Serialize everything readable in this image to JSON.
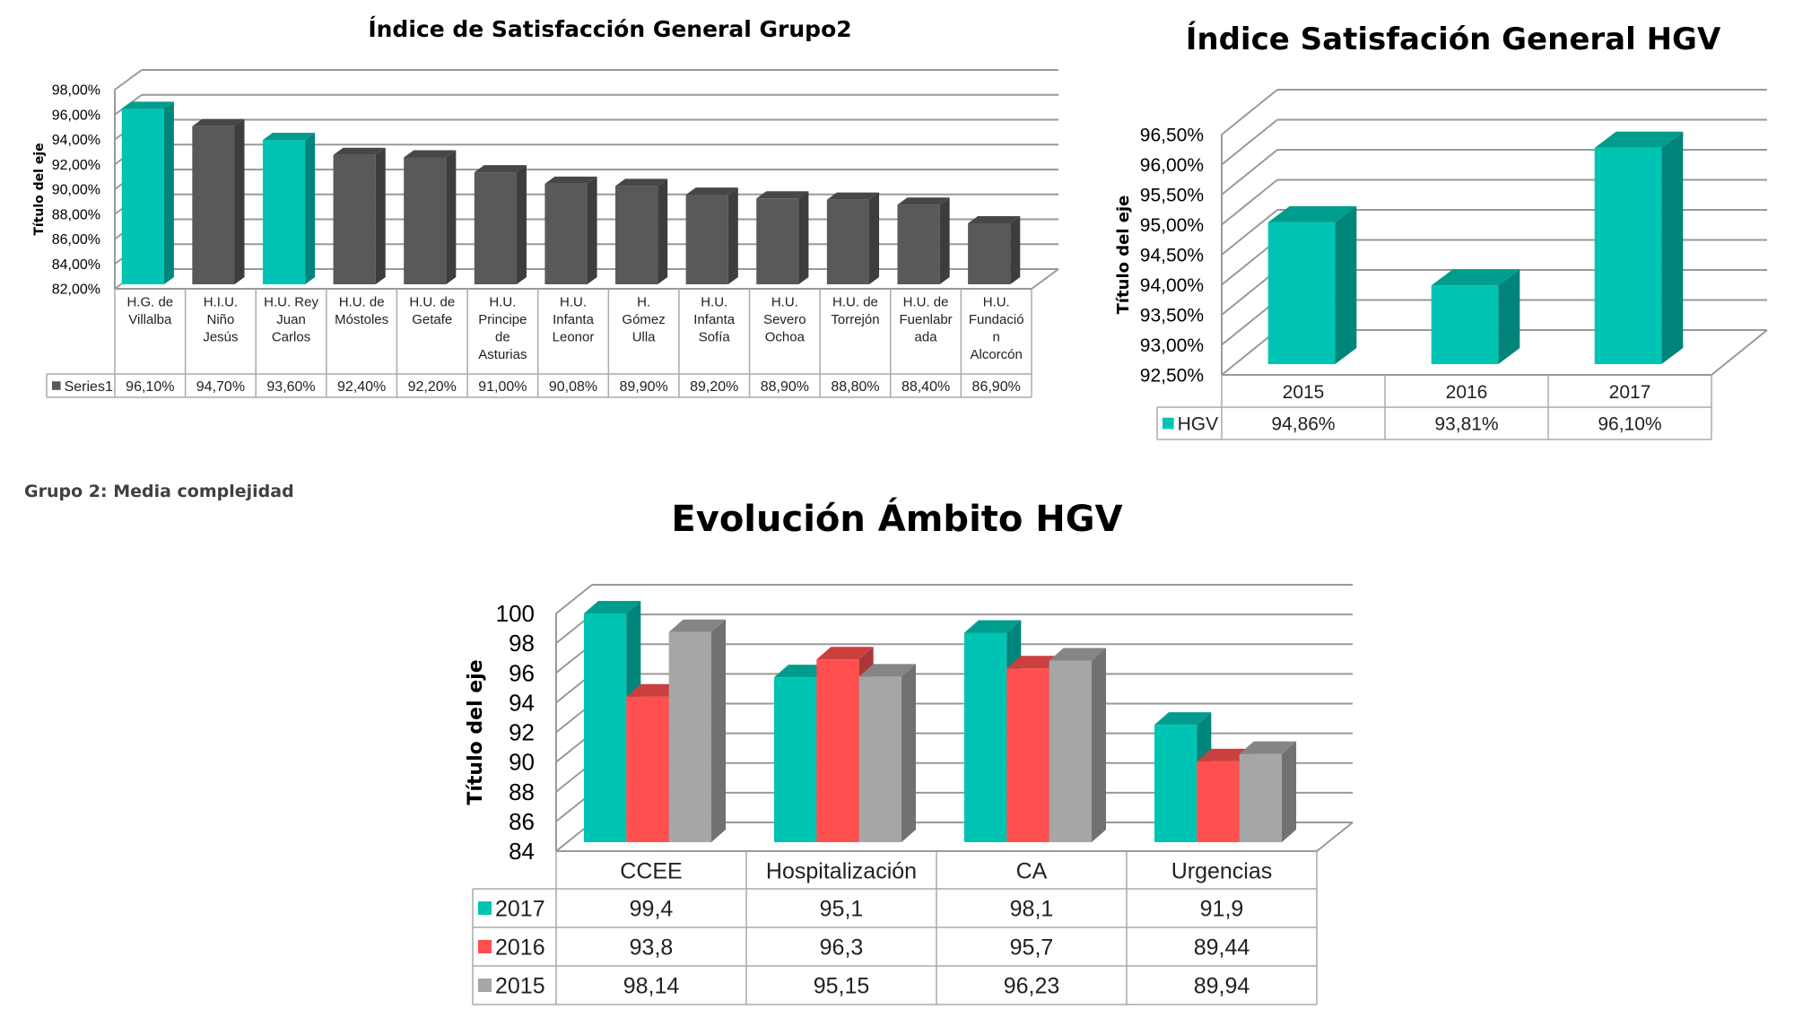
{
  "note": "Grupo 2: Media complejidad",
  "chart_data": [
    {
      "type": "bar",
      "title": "Índice de Satisfacción General Grupo2",
      "xlabel": "",
      "ylabel": "Título del eje",
      "ylim": [
        82,
        98
      ],
      "yticks": [
        "82,00%",
        "84,00%",
        "86,00%",
        "88,00%",
        "90,00%",
        "92,00%",
        "94,00%",
        "96,00%",
        "98,00%"
      ],
      "ytick_values": [
        82,
        84,
        86,
        88,
        90,
        92,
        94,
        96,
        98
      ],
      "grid": true,
      "legend": "table-left",
      "categories": [
        [
          "H.G. de",
          "Villalba"
        ],
        [
          "H.I.U.",
          "Niño",
          "Jesús"
        ],
        [
          "H.U. Rey",
          "Juan",
          "Carlos"
        ],
        [
          "H.U. de",
          "Móstoles"
        ],
        [
          "H.U. de",
          "Getafe"
        ],
        [
          "H.U.",
          "Principe",
          "de",
          "Asturias"
        ],
        [
          "H.U.",
          "Infanta",
          "Leonor"
        ],
        [
          "H.",
          "Gómez",
          "Ulla"
        ],
        [
          "H.U.",
          "Infanta",
          "Sofía"
        ],
        [
          "H.U.",
          "Severo",
          "Ochoa"
        ],
        [
          "H.U. de",
          "Torrejón"
        ],
        [
          "H.U. de",
          "Fuenlabr",
          "ada"
        ],
        [
          "H.U.",
          "Fundació",
          "n",
          "Alcorcón"
        ]
      ],
      "series": [
        {
          "name": "Series1",
          "values": [
            96.1,
            94.7,
            93.6,
            92.4,
            92.2,
            91.0,
            90.08,
            89.9,
            89.2,
            88.9,
            88.8,
            88.4,
            86.9
          ],
          "labels": [
            "96,10%",
            "94,70%",
            "93,60%",
            "92,40%",
            "92,20%",
            "91,00%",
            "90,08%",
            "89,90%",
            "89,20%",
            "88,90%",
            "88,80%",
            "88,40%",
            "86,90%"
          ],
          "color": "#595959",
          "highlight_indices": [
            0,
            2
          ],
          "highlight_color": "#00C4B3"
        }
      ]
    },
    {
      "type": "bar",
      "title": "Índice Satisfación General HGV",
      "xlabel": "",
      "ylabel": "Título del eje",
      "ylim": [
        92.5,
        96.5
      ],
      "yticks": [
        "92,50%",
        "93,00%",
        "93,50%",
        "94,00%",
        "94,50%",
        "95,00%",
        "95,50%",
        "96,00%",
        "96,50%"
      ],
      "ytick_values": [
        92.5,
        93,
        93.5,
        94,
        94.5,
        95,
        95.5,
        96,
        96.5
      ],
      "grid": true,
      "legend": "table-left",
      "categories": [
        "2015",
        "2016",
        "2017"
      ],
      "series": [
        {
          "name": "HGV",
          "values": [
            94.86,
            93.81,
            96.1
          ],
          "labels": [
            "94,86%",
            "93,81%",
            "96,10%"
          ],
          "color": "#00C4B3"
        }
      ]
    },
    {
      "type": "bar",
      "title": "Evolución Ámbito HGV",
      "xlabel": "",
      "ylabel": "Título del eje",
      "ylim": [
        84,
        100
      ],
      "yticks": [
        "84",
        "86",
        "88",
        "90",
        "92",
        "94",
        "96",
        "98",
        "100"
      ],
      "ytick_values": [
        84,
        86,
        88,
        90,
        92,
        94,
        96,
        98,
        100
      ],
      "grid": true,
      "legend": "table-left",
      "categories": [
        "CCEE",
        "Hospitalización",
        "CA",
        "Urgencias"
      ],
      "series": [
        {
          "name": "2017",
          "values": [
            99.4,
            95.1,
            98.1,
            91.9
          ],
          "labels": [
            "99,4",
            "95,1",
            "98,1",
            "91,9"
          ],
          "color": "#00C4B3"
        },
        {
          "name": "2016",
          "values": [
            93.8,
            96.3,
            95.7,
            89.44
          ],
          "labels": [
            "93,8",
            "96,3",
            "95,7",
            "89,44"
          ],
          "color": "#FF4F4F"
        },
        {
          "name": "2015",
          "values": [
            98.14,
            95.15,
            96.23,
            89.94
          ],
          "labels": [
            "98,14",
            "95,15",
            "96,23",
            "89,94"
          ],
          "color": "#A6A6A6"
        }
      ]
    }
  ]
}
